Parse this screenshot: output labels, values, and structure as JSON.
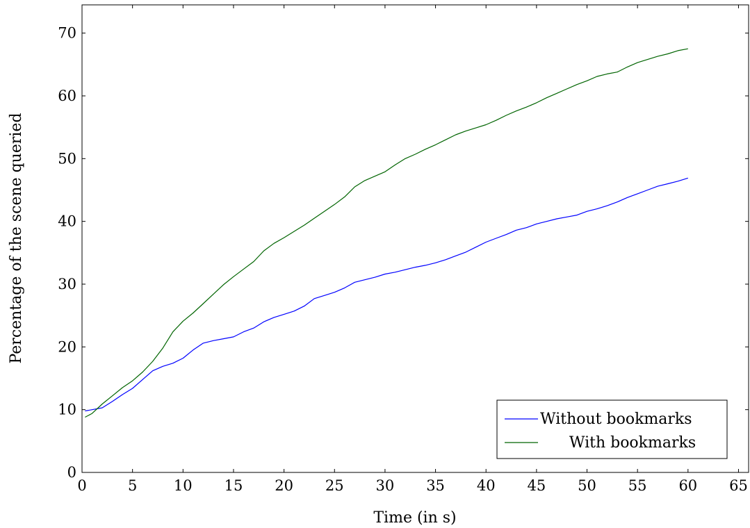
{
  "chart_data": {
    "type": "line",
    "title": "",
    "xlabel": "Time (in s)",
    "ylabel": "Percentage of the scene queried",
    "xlim": [
      0,
      66
    ],
    "ylim": [
      0,
      74.5
    ],
    "xticks": [
      0,
      5,
      10,
      15,
      20,
      25,
      30,
      35,
      40,
      45,
      50,
      55,
      60,
      65
    ],
    "yticks": [
      0,
      10,
      20,
      30,
      40,
      50,
      60,
      70
    ],
    "grid": false,
    "legend_position": "bottom-right",
    "series": [
      {
        "name": "Without bookmarks",
        "color": "#0000ff",
        "x": [
          0.3,
          1,
          2,
          3,
          4,
          5,
          6,
          7,
          8,
          9,
          10,
          11,
          12,
          13,
          14,
          15,
          16,
          17,
          18,
          19,
          20,
          21,
          22,
          23,
          24,
          25,
          26,
          27,
          28,
          29,
          30,
          31,
          32,
          33,
          34,
          35,
          36,
          37,
          38,
          39,
          40,
          41,
          42,
          43,
          44,
          45,
          46,
          47,
          48,
          49,
          50,
          51,
          52,
          53,
          54,
          55,
          56,
          57,
          58,
          59,
          60
        ],
        "y": [
          9.8,
          10.0,
          10.3,
          11.3,
          12.4,
          13.4,
          14.8,
          16.2,
          16.9,
          17.4,
          18.2,
          19.5,
          20.6,
          21.0,
          21.3,
          21.6,
          22.4,
          23.0,
          24.0,
          24.7,
          25.2,
          25.7,
          26.5,
          27.7,
          28.2,
          28.7,
          29.4,
          30.3,
          30.7,
          31.1,
          31.6,
          31.9,
          32.3,
          32.7,
          33.0,
          33.4,
          33.9,
          34.5,
          35.1,
          35.9,
          36.7,
          37.3,
          37.9,
          38.6,
          39.0,
          39.6,
          40.0,
          40.4,
          40.7,
          41.0,
          41.6,
          42.0,
          42.5,
          43.1,
          43.8,
          44.4,
          45.0,
          45.6,
          46.0,
          46.4,
          46.9
        ]
      },
      {
        "name": "With bookmarks",
        "color": "#006400",
        "x": [
          0.3,
          1,
          2,
          3,
          4,
          5,
          6,
          7,
          8,
          9,
          10,
          11,
          12,
          13,
          14,
          15,
          16,
          17,
          18,
          19,
          20,
          21,
          22,
          23,
          24,
          25,
          26,
          27,
          28,
          29,
          30,
          31,
          32,
          33,
          34,
          35,
          36,
          37,
          38,
          39,
          40,
          41,
          42,
          43,
          44,
          45,
          46,
          47,
          48,
          49,
          50,
          51,
          52,
          53,
          54,
          55,
          56,
          57,
          58,
          59,
          60
        ],
        "y": [
          8.8,
          9.4,
          10.9,
          12.2,
          13.5,
          14.6,
          16.0,
          17.7,
          19.8,
          22.4,
          24.1,
          25.4,
          26.9,
          28.4,
          29.9,
          31.2,
          32.4,
          33.6,
          35.3,
          36.5,
          37.4,
          38.4,
          39.4,
          40.5,
          41.6,
          42.7,
          43.9,
          45.5,
          46.5,
          47.2,
          47.9,
          49.0,
          50.0,
          50.7,
          51.5,
          52.2,
          53.0,
          53.8,
          54.4,
          54.9,
          55.4,
          56.1,
          56.9,
          57.6,
          58.2,
          58.9,
          59.7,
          60.4,
          61.1,
          61.8,
          62.4,
          63.1,
          63.5,
          63.8,
          64.6,
          65.3,
          65.8,
          66.3,
          66.7,
          67.2,
          67.5
        ]
      }
    ]
  }
}
